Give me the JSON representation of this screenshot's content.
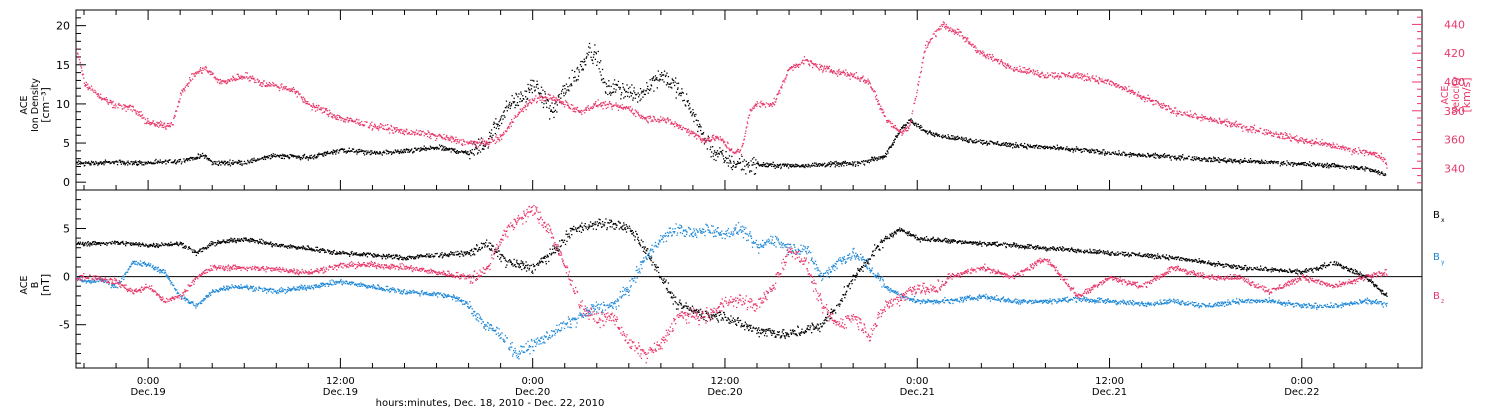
{
  "colors": {
    "black": "#000000",
    "pink": "#e8386a",
    "blue": "#1e88d8"
  },
  "chart_data": [
    {
      "type": "scatter",
      "panel": "top",
      "ylabel": {
        "line1": "ACE",
        "line2": "Ion Density",
        "line3": "[cm⁻³]"
      },
      "ylabel_right": {
        "line1": "ACE",
        "line2": "Velocity",
        "line3": "[km/s]"
      },
      "y_left": {
        "range": [
          -1,
          22
        ],
        "ticks": [
          "0",
          "5",
          "10",
          "15",
          "20"
        ]
      },
      "y_right": {
        "range": [
          325,
          450
        ],
        "ticks": [
          "340",
          "360",
          "380",
          "400",
          "420",
          "440"
        ]
      },
      "x_hours_range": [
        -4.5,
        79.5
      ],
      "series": [
        {
          "axis": "left",
          "color": "black",
          "x": [
            -4.5,
            -3.5,
            -2,
            0,
            2,
            3.5,
            4,
            6,
            8,
            10,
            12,
            14,
            16,
            18,
            20,
            21,
            22.5,
            23.5,
            24,
            24.6,
            25.2,
            26,
            26.8,
            27.5,
            28,
            28.5,
            29.5,
            30.5,
            32,
            33,
            34,
            34.6,
            35.2,
            36,
            36.5,
            38,
            40,
            42,
            44.5,
            46,
            47,
            47.5,
            48.5,
            50,
            52,
            54,
            56,
            58,
            60,
            62,
            64,
            66,
            68,
            70,
            72,
            74,
            76,
            77.2
          ],
          "y": [
            2.5,
            2.5,
            2.6,
            2.5,
            2.8,
            3.5,
            2.5,
            2.6,
            3.5,
            3.2,
            4.2,
            3.8,
            4.0,
            4.5,
            3.8,
            5.0,
            10,
            11,
            12.5,
            11,
            9,
            12,
            14,
            17,
            16,
            12,
            12,
            11,
            14,
            12,
            9,
            6,
            4,
            3,
            2.5,
            2.3,
            2.2,
            2.3,
            2.5,
            3.5,
            7,
            8,
            6.5,
            5.8,
            5.2,
            4.8,
            4.5,
            4.2,
            3.8,
            3.5,
            3.3,
            3.0,
            2.8,
            2.6,
            2.4,
            2.2,
            1.8,
            1.0
          ]
        },
        {
          "axis": "right",
          "color": "pink",
          "x": [
            -4.5,
            -4,
            -3,
            -2,
            -1,
            0,
            1,
            1.5,
            2,
            2.8,
            3.5,
            4.5,
            6,
            7,
            9,
            10,
            12,
            14,
            16,
            18,
            20,
            21,
            22,
            23,
            24,
            25,
            26,
            27,
            28,
            30,
            31,
            32,
            33,
            34,
            34.5,
            35.5,
            36.5,
            37,
            37.5,
            38,
            39,
            40,
            41,
            42,
            44,
            45,
            46,
            47,
            47.5,
            48.5,
            49.5,
            50.5,
            52,
            54,
            56,
            58,
            60,
            62,
            64,
            66,
            68,
            70,
            72,
            74,
            75,
            76,
            77,
            77.3
          ],
          "y": [
            425,
            400,
            390,
            384,
            382,
            372,
            370,
            372,
            392,
            405,
            410,
            400,
            405,
            400,
            395,
            385,
            375,
            370,
            366,
            363,
            358,
            358,
            362,
            378,
            388,
            390,
            385,
            380,
            385,
            382,
            375,
            375,
            370,
            365,
            360,
            362,
            352,
            352,
            380,
            385,
            385,
            410,
            415,
            410,
            405,
            400,
            375,
            365,
            370,
            425,
            440,
            435,
            420,
            410,
            405,
            405,
            400,
            390,
            380,
            375,
            370,
            365,
            360,
            356,
            353,
            352,
            348,
            342
          ]
        }
      ]
    },
    {
      "type": "scatter",
      "panel": "bottom",
      "ylabel": {
        "line1": "ACE",
        "line2": "B",
        "line3": "[nT]"
      },
      "y": {
        "range": [
          -9.5,
          9
        ],
        "ticks": [
          "-5",
          "0",
          "5"
        ]
      },
      "x_hours_range": [
        -4.5,
        79.5
      ],
      "legend_position": "right",
      "legend": [
        {
          "name": "B",
          "sub": "x",
          "color": "black"
        },
        {
          "name": "B",
          "sub": "y",
          "color": "blue"
        },
        {
          "name": "B",
          "sub": "z",
          "color": "pink"
        }
      ],
      "series": [
        {
          "name": "Bx",
          "color": "black",
          "x": [
            -4.5,
            -3.5,
            -2,
            0,
            2,
            3,
            4,
            6,
            8,
            10,
            12,
            14,
            16,
            18,
            20,
            21,
            22.5,
            24,
            24.8,
            25.5,
            26.5,
            28,
            29,
            30,
            31,
            32,
            33,
            34,
            35,
            36,
            37,
            38,
            40,
            42,
            43,
            44,
            45,
            46,
            47,
            48,
            50,
            52,
            54,
            56,
            58,
            60,
            62,
            64,
            66,
            68,
            70,
            72,
            74,
            76,
            77.3
          ],
          "y": [
            3.5,
            3.5,
            3.6,
            3.3,
            3.5,
            2.5,
            3.5,
            4,
            3.3,
            3,
            2.5,
            2.3,
            2,
            2.3,
            2.5,
            3.5,
            1.5,
            1,
            2,
            3,
            5,
            5.5,
            5.5,
            5,
            3,
            0,
            -3,
            -3.5,
            -4,
            -4,
            -5,
            -5.5,
            -6,
            -5,
            -3,
            0,
            2,
            4,
            5,
            4,
            3.8,
            3.5,
            3.3,
            3,
            2.8,
            2.5,
            2.3,
            2,
            1.5,
            1,
            0.8,
            0.5,
            1.5,
            0,
            -2
          ]
        },
        {
          "name": "By",
          "color": "blue",
          "x": [
            -4.5,
            -4,
            -3,
            -2,
            -1,
            0,
            1,
            2,
            3,
            4,
            5,
            6,
            8,
            10,
            12,
            14,
            16,
            18,
            19,
            20,
            21,
            22,
            23,
            24,
            25,
            26,
            27,
            28,
            29,
            30,
            31,
            32,
            33,
            34,
            35,
            36,
            37,
            38,
            39,
            40,
            41,
            42,
            43,
            44,
            45,
            46,
            47,
            48,
            50,
            52,
            54,
            56,
            58,
            60,
            62,
            64,
            66,
            68,
            70,
            72,
            74,
            76,
            77.3
          ],
          "y": [
            0,
            -0.5,
            -0.3,
            -1,
            1.5,
            1.3,
            0.5,
            -2,
            -3,
            -1.5,
            -1,
            -1,
            -1.5,
            -1,
            -0.5,
            -1,
            -1.5,
            -1.8,
            -2,
            -3,
            -5,
            -6,
            -8,
            -7,
            -6,
            -5,
            -4,
            -3,
            -3,
            -1,
            2,
            4,
            5,
            4.5,
            5,
            4.5,
            5,
            3,
            4,
            3,
            3,
            0,
            1.5,
            2.5,
            1,
            -1,
            -2,
            -2.5,
            -2.5,
            -2,
            -2.5,
            -2.5,
            -2.3,
            -2.5,
            -2.8,
            -2.5,
            -3,
            -2.5,
            -2.5,
            -3,
            -3,
            -2.5,
            -2.8
          ]
        },
        {
          "name": "Bz",
          "color": "pink",
          "x": [
            -4.5,
            -3.5,
            -2,
            -1,
            0,
            1,
            2,
            3,
            4,
            6,
            8,
            10,
            12,
            14,
            16,
            18,
            20,
            21,
            22,
            23,
            24,
            25,
            26,
            27,
            28,
            29,
            30,
            31,
            32,
            33,
            34,
            35,
            36,
            37,
            38,
            39,
            40,
            41,
            42,
            43,
            44,
            45,
            46,
            47,
            48,
            49,
            50,
            51,
            52,
            54,
            56,
            58,
            60,
            62,
            64,
            66,
            68,
            70,
            72,
            74,
            76,
            77.3
          ],
          "y": [
            0,
            0,
            -0.5,
            -1.5,
            -1,
            -2.5,
            -2,
            0,
            1,
            1,
            0.8,
            0.5,
            1.2,
            1.3,
            1,
            0.5,
            0,
            0.5,
            4,
            6,
            7,
            5,
            1,
            -3,
            -4.5,
            -4,
            -7,
            -8,
            -7,
            -4,
            -4,
            -4,
            -2.5,
            -2.5,
            -3,
            -1,
            3,
            1.5,
            -3,
            -5,
            -4,
            -6,
            -3,
            -2,
            -1,
            -1.5,
            0,
            0.5,
            1,
            0,
            2,
            -2,
            0,
            -1,
            1,
            0,
            0,
            -1.5,
            0,
            -1,
            0,
            0.5
          ]
        }
      ]
    }
  ],
  "x_axis": {
    "major_ticks": [
      {
        "hours": 0,
        "time": "0:00",
        "date": "Dec.19"
      },
      {
        "hours": 12,
        "time": "12:00",
        "date": "Dec.19"
      },
      {
        "hours": 24,
        "time": "0:00",
        "date": "Dec.20"
      },
      {
        "hours": 36,
        "time": "12:00",
        "date": "Dec.20"
      },
      {
        "hours": 48,
        "time": "0:00",
        "date": "Dec.21"
      },
      {
        "hours": 60,
        "time": "12:00",
        "date": "Dec.21"
      },
      {
        "hours": 72,
        "time": "0:00",
        "date": "Dec.22"
      }
    ],
    "title": "hours:minutes, Dec. 18, 2010 - Dec. 22, 2010"
  }
}
